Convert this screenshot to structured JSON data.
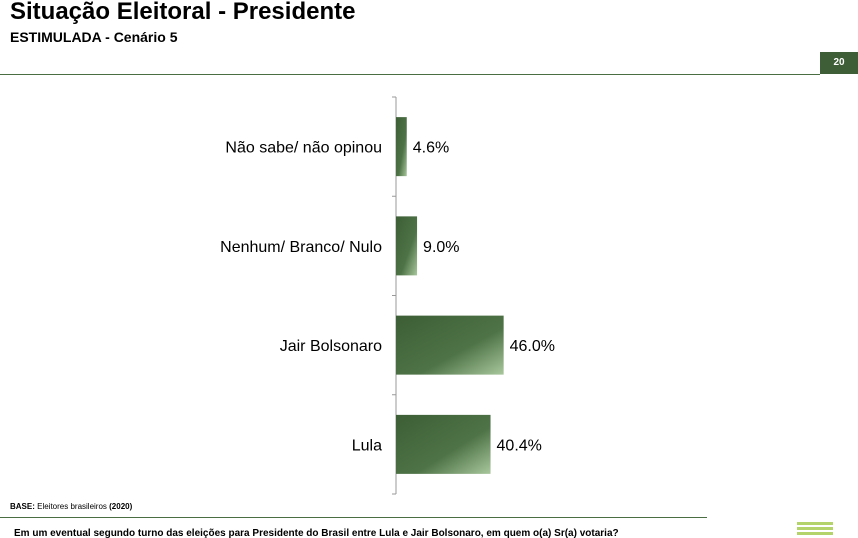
{
  "header": {
    "title": "Situação Eleitoral - Presidente",
    "subtitle": "ESTIMULADA - Cenário 5",
    "page_number": "20"
  },
  "chart_data": {
    "type": "bar",
    "orientation": "horizontal",
    "categories": [
      "Não sabe/ não opinou",
      "Nenhum/ Branco/ Nulo",
      "Jair Bolsonaro",
      "Lula"
    ],
    "values": [
      4.6,
      9.0,
      46.0,
      40.4
    ],
    "value_labels": [
      "4.6%",
      "9.0%",
      "46.0%",
      "40.4%"
    ],
    "unit": "%",
    "xlim": [
      0,
      100
    ],
    "grid": false,
    "legend": "none",
    "bar_color": "#4a6d42"
  },
  "footer": {
    "base_label": "BASE:",
    "base_text": " Eleitores brasileiros ",
    "base_year": "(2020)",
    "question": "Em um eventual segundo turno das eleições para Presidente do Brasil entre Lula e Jair Bolsonaro, em quem o(a) Sr(a) votaria?"
  }
}
